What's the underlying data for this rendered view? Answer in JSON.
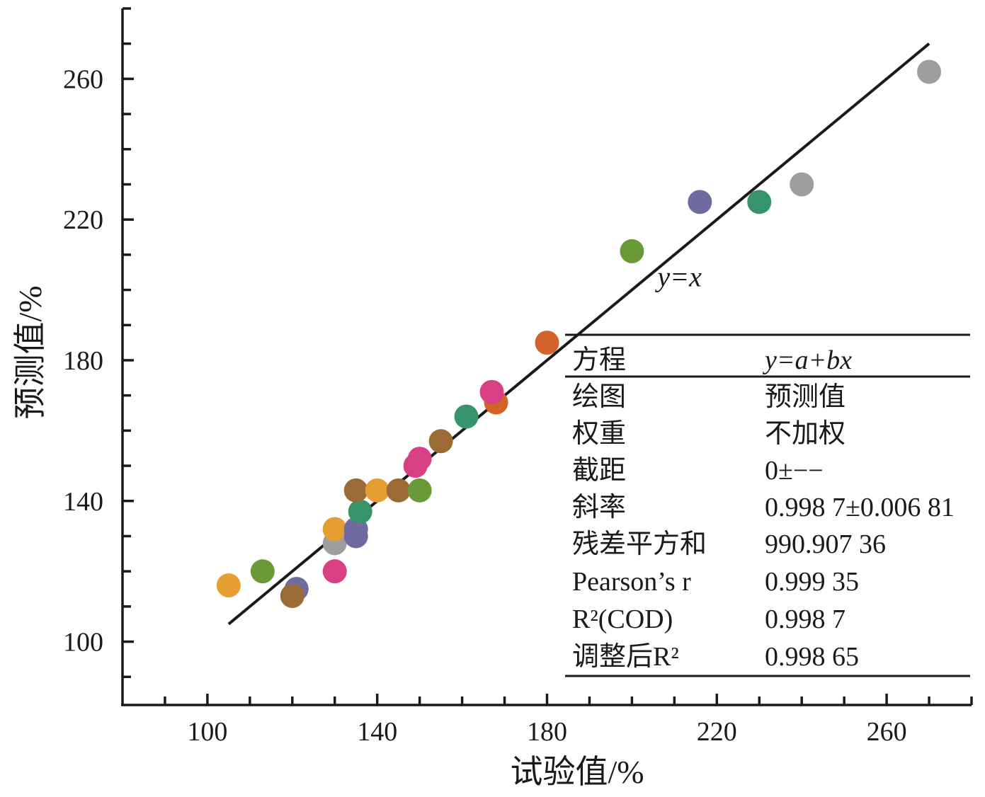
{
  "chart_data": {
    "type": "scatter",
    "xlabel": "试验值/%",
    "ylabel": "预测值/%",
    "xlim": [
      80,
      280
    ],
    "ylim": [
      82,
      280
    ],
    "x_ticks": [
      100,
      140,
      180,
      220,
      260
    ],
    "y_ticks": [
      100,
      140,
      180,
      220,
      260
    ],
    "minor_step": 10,
    "fit_line": {
      "label": "y=x",
      "x_start": 105,
      "x_end": 270,
      "intercept": 0,
      "slope": 1
    },
    "line_annotation": {
      "text": "y=x",
      "x": 206,
      "y": 201
    },
    "points": [
      {
        "x": 105,
        "y": 116,
        "color": "#E59E32"
      },
      {
        "x": 113,
        "y": 120,
        "color": "#6A9A38"
      },
      {
        "x": 121,
        "y": 115,
        "color": "#6F6AA0"
      },
      {
        "x": 120,
        "y": 113,
        "color": "#9B6B35"
      },
      {
        "x": 130,
        "y": 128,
        "color": "#9E9E9E"
      },
      {
        "x": 130,
        "y": 120,
        "color": "#D93F84"
      },
      {
        "x": 130,
        "y": 132,
        "color": "#E59E32"
      },
      {
        "x": 135,
        "y": 130,
        "color": "#6F6AA0"
      },
      {
        "x": 135,
        "y": 132,
        "color": "#6F6AA0"
      },
      {
        "x": 136,
        "y": 137,
        "color": "#36936A"
      },
      {
        "x": 135,
        "y": 143,
        "color": "#9B6B35"
      },
      {
        "x": 140,
        "y": 143,
        "color": "#E59E32"
      },
      {
        "x": 145,
        "y": 143,
        "color": "#9B6B35"
      },
      {
        "x": 150,
        "y": 143,
        "color": "#6A9A38"
      },
      {
        "x": 149,
        "y": 150,
        "color": "#D93F84"
      },
      {
        "x": 150,
        "y": 152,
        "color": "#D93F84"
      },
      {
        "x": 155,
        "y": 157,
        "color": "#9B6B35"
      },
      {
        "x": 161,
        "y": 164,
        "color": "#36936A"
      },
      {
        "x": 168,
        "y": 168,
        "color": "#D2632A"
      },
      {
        "x": 167,
        "y": 171,
        "color": "#D93F84"
      },
      {
        "x": 180,
        "y": 185,
        "color": "#D2632A"
      },
      {
        "x": 200,
        "y": 211,
        "color": "#6A9A38"
      },
      {
        "x": 216,
        "y": 225,
        "color": "#6F6AA0"
      },
      {
        "x": 230,
        "y": 225,
        "color": "#36936A"
      },
      {
        "x": 240,
        "y": 230,
        "color": "#9E9E9E"
      },
      {
        "x": 270,
        "y": 262,
        "color": "#9E9E9E"
      }
    ],
    "stats_table": {
      "rows": [
        {
          "label": "方程",
          "value": "y=a+bx"
        },
        {
          "label": "绘图",
          "value": "预测值"
        },
        {
          "label": "权重",
          "value": "不加权"
        },
        {
          "label": "截距",
          "value": "0±−−"
        },
        {
          "label": "斜率",
          "value": "0.998 7±0.006 81"
        },
        {
          "label": "残差平方和",
          "value": "990.907 36"
        },
        {
          "label": "Pearson’s r",
          "value": "0.999 35"
        },
        {
          "label": "R²(COD)",
          "value": "0.998 7"
        },
        {
          "label": "调整后R²",
          "value": "0.998 65"
        }
      ]
    }
  }
}
